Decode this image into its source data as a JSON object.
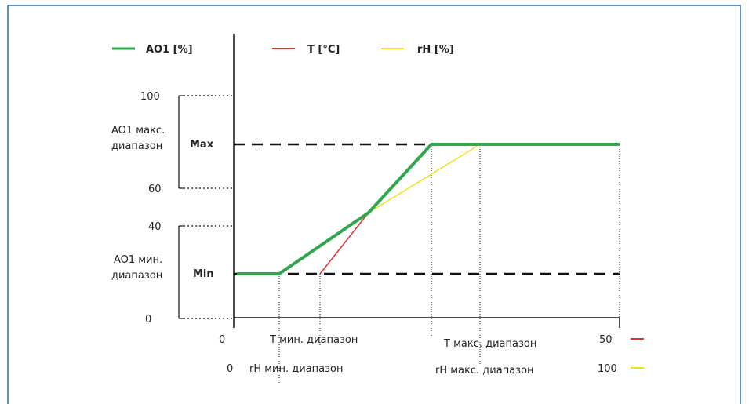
{
  "colors": {
    "frame": "#2f6fa8",
    "ao1": "#2ea84a",
    "temperature": "#e03030",
    "humidity": "#f2e21a",
    "axis": "#111111"
  },
  "legend": {
    "ao1": "AO1 [%]",
    "temperature": "T [°C]",
    "humidity": "rH [%]"
  },
  "y_axis": {
    "ticks": [
      "100",
      "60",
      "40",
      "0"
    ],
    "max_range_label_line1": "AO1 макс.",
    "max_range_label_line2": "диапазон",
    "min_range_label_line1": "AO1 мин.",
    "min_range_label_line2": "диапазон",
    "max_label": "Max",
    "min_label": "Min"
  },
  "x_axis": {
    "t_start": "0",
    "t_min_label": "T мин. диапазон",
    "t_max_label": "T макс. диапазон",
    "t_end": "50",
    "rh_start": "0",
    "rh_min_label": "rH мин. диапазон",
    "rh_max_label": "rH макс. диапазон",
    "rh_end": "100"
  }
}
